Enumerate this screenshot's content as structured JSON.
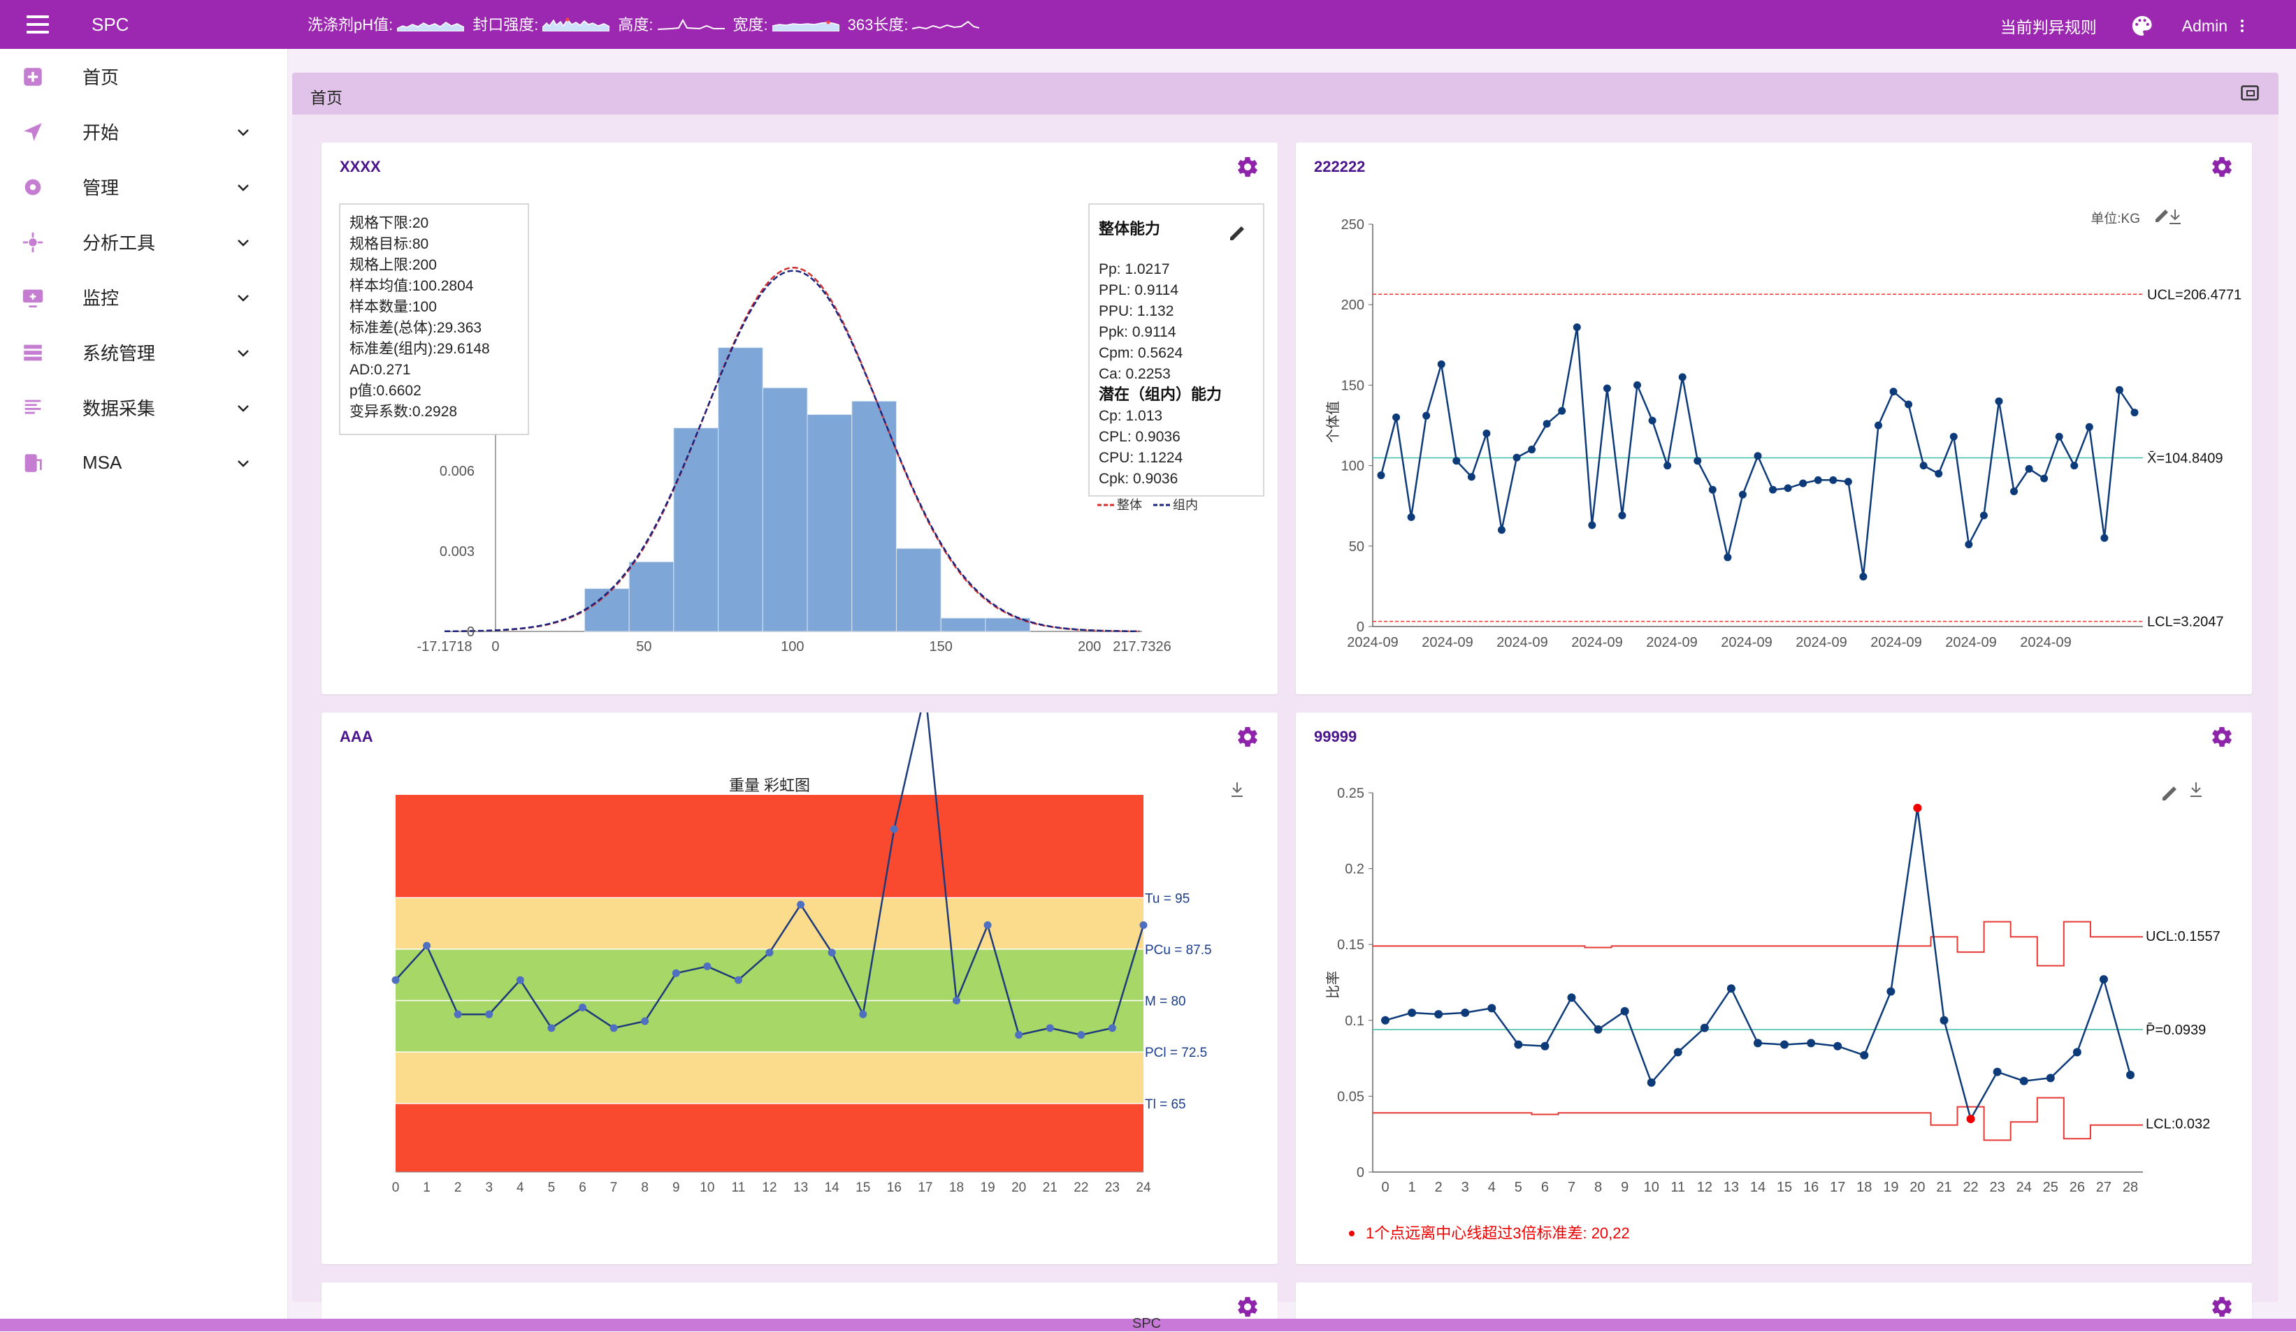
{
  "app": {
    "title": "SPC",
    "user": "Admin",
    "rule_label": "当前判异规则",
    "footer_text": "SPC"
  },
  "ticker": [
    "洗涤剂pH值:",
    "封口强度:",
    "高度:",
    "宽度:",
    "363长度:"
  ],
  "sidebar": [
    {
      "label": "首页",
      "icon": "home-icon",
      "has_children": false
    },
    {
      "label": "开始",
      "icon": "send-icon",
      "has_children": true
    },
    {
      "label": "管理",
      "icon": "gear-icon",
      "has_children": true
    },
    {
      "label": "分析工具",
      "icon": "analysis-icon",
      "has_children": true
    },
    {
      "label": "监控",
      "icon": "monitor-icon",
      "has_children": true
    },
    {
      "label": "系统管理",
      "icon": "system-icon",
      "has_children": true
    },
    {
      "label": "数据采集",
      "icon": "data-icon",
      "has_children": true
    },
    {
      "label": "MSA",
      "icon": "msa-icon",
      "has_children": true
    }
  ],
  "breadcrumb": "首页",
  "colors": {
    "primary": "#9c27b0",
    "bar": "#7ea7d8",
    "line": "#0d3b7a",
    "red": "#e53935",
    "center": "#3bbfa9"
  },
  "cards": {
    "c1": {
      "title": "XXXX",
      "stats": [
        "规格下限:20",
        "规格目标:80",
        "规格上限:200",
        "样本均值:100.2804",
        "样本数量:100",
        "标准差(总体):29.363",
        "标准差(组内):29.6148",
        "AD:0.271",
        "p值:0.6602",
        "变异系数:0.2928"
      ],
      "capability": {
        "overall_title": "整体能力",
        "overall": [
          "Pp: 1.0217",
          "PPL: 0.9114",
          "PPU: 1.132",
          "Ppk: 0.9114",
          "Cpm: 0.5624",
          "Ca: 0.2253"
        ],
        "within_title": "潜在（组内）能力",
        "within": [
          "Cp: 1.013",
          "CPL: 0.9036",
          "CPU: 1.1224",
          "Cpk: 0.9036"
        ],
        "legend_overall": "整体",
        "legend_within": "组内"
      }
    },
    "c2": {
      "title": "222222",
      "unit": "单位:KG"
    },
    "c3": {
      "title": "AAA"
    },
    "c4": {
      "title": "99999",
      "alarm": "1个点远离中心线超过3倍标准差: 20,22"
    }
  },
  "chart_data": [
    {
      "type": "bar",
      "chart": "histogram",
      "bins": [
        [
          30,
          45
        ],
        [
          45,
          60
        ],
        [
          60,
          75
        ],
        [
          75,
          90
        ],
        [
          90,
          105
        ],
        [
          105,
          120
        ],
        [
          120,
          135
        ],
        [
          135,
          150
        ],
        [
          150,
          165
        ],
        [
          165,
          180
        ]
      ],
      "density": [
        0.0016,
        0.0026,
        0.0076,
        0.0106,
        0.0091,
        0.0081,
        0.0086,
        0.0031,
        0.0005,
        0.0005
      ],
      "normal_curve": {
        "mean": 100.2804,
        "sd_overall": 29.363,
        "sd_within": 29.6148
      },
      "x_ticks": [
        "-17.1718",
        "0",
        "50",
        "100",
        "150",
        "200",
        "217.7326"
      ],
      "y_ticks": [
        "0",
        "0.003",
        "0.006"
      ],
      "xlim": [
        -17.1718,
        217.7326
      ]
    },
    {
      "type": "line",
      "chart": "individuals",
      "ylabel": "个体值",
      "ylim": [
        0,
        250
      ],
      "y_ticks": [
        0,
        50,
        100,
        150,
        200,
        250
      ],
      "x_tick_labels": [
        "2024-09",
        "2024-09",
        "2024-09",
        "2024-09",
        "2024-09",
        "2024-09",
        "2024-09",
        "2024-09",
        "2024-09",
        "2024-09"
      ],
      "values": [
        94,
        130,
        68,
        131,
        163,
        103,
        93,
        120,
        60,
        105,
        110,
        126,
        134,
        186,
        63,
        148,
        69,
        150,
        128,
        100,
        155,
        103,
        85,
        43,
        82,
        106,
        85,
        86,
        89,
        91,
        91,
        90,
        31,
        125,
        146,
        138,
        100,
        95,
        118,
        51,
        69,
        140,
        84,
        98,
        92,
        118,
        100,
        124,
        55,
        147,
        133
      ],
      "UCL": 206.4771,
      "CL": 104.8409,
      "LCL": 3.2047,
      "UCL_label": "UCL=206.4771",
      "CL_label": "X̄=104.8409",
      "LCL_label": "LCL=3.2047"
    },
    {
      "type": "line",
      "chart": "rainbow",
      "title": "重量 彩虹图",
      "x": [
        0,
        1,
        2,
        3,
        4,
        5,
        6,
        7,
        8,
        9,
        10,
        11,
        12,
        13,
        14,
        15,
        16,
        17,
        18,
        19,
        20,
        21,
        22,
        23,
        24
      ],
      "values": [
        83,
        88,
        78,
        78,
        83,
        76,
        79,
        76,
        77,
        84,
        85,
        83,
        87,
        94,
        87,
        78,
        105,
        125,
        80,
        91,
        75,
        76,
        75,
        76,
        91
      ],
      "zones": {
        "Tu": 95,
        "PCu": 87.5,
        "M": 80,
        "PCl": 72.5,
        "Tl": 65
      },
      "zone_labels": [
        "Tu = 95",
        "PCu = 87.5",
        "M = 80",
        "PCl = 72.5",
        "Tl = 65"
      ],
      "ylim": [
        55,
        110
      ],
      "zone_colors": {
        "red": "#f9492f",
        "yellow": "#fbdc8c",
        "green": "#a7d766"
      }
    },
    {
      "type": "line",
      "chart": "p-chart",
      "ylabel": "比率",
      "ylim": [
        0,
        0.25
      ],
      "y_ticks": [
        "0",
        "0.05",
        "0.1",
        "0.15",
        "0.2",
        "0.25"
      ],
      "x": [
        0,
        1,
        2,
        3,
        4,
        5,
        6,
        7,
        8,
        9,
        10,
        11,
        12,
        13,
        14,
        15,
        16,
        17,
        18,
        19,
        20,
        21,
        22,
        23,
        24,
        25,
        26,
        27,
        28
      ],
      "values": [
        0.1,
        0.105,
        0.104,
        0.105,
        0.108,
        0.084,
        0.083,
        0.115,
        0.094,
        0.106,
        0.059,
        0.079,
        0.095,
        0.121,
        0.085,
        0.084,
        0.085,
        0.083,
        0.077,
        0.119,
        0.24,
        0.1,
        0.035,
        0.066,
        0.06,
        0.062,
        0.079,
        0.127,
        0.064
      ],
      "out_of_control": [
        20,
        22
      ],
      "UCL_steps": [
        0.149,
        0.149,
        0.149,
        0.149,
        0.149,
        0.149,
        0.149,
        0.149,
        0.148,
        0.149,
        0.149,
        0.149,
        0.149,
        0.149,
        0.149,
        0.149,
        0.149,
        0.149,
        0.149,
        0.149,
        0.149,
        0.155,
        0.145,
        0.165,
        0.155,
        0.136,
        0.165,
        0.155,
        0.155
      ],
      "LCL_steps": [
        0.039,
        0.039,
        0.039,
        0.039,
        0.039,
        0.039,
        0.038,
        0.039,
        0.039,
        0.039,
        0.039,
        0.039,
        0.039,
        0.039,
        0.039,
        0.039,
        0.039,
        0.039,
        0.039,
        0.039,
        0.039,
        0.031,
        0.043,
        0.021,
        0.033,
        0.049,
        0.022,
        0.031,
        0.031
      ],
      "UCL_label": "UCL:0.1557",
      "CL_label": "P̄=0.0939",
      "LCL_label": "LCL:0.032",
      "CL": 0.0939
    }
  ]
}
